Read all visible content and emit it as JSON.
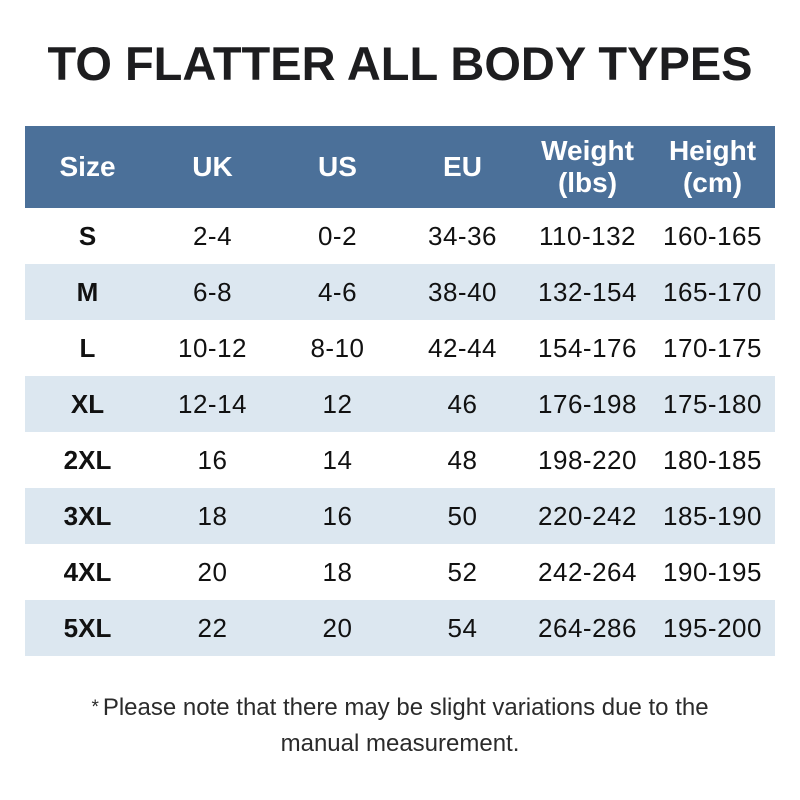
{
  "page": {
    "title": "TO FLATTER ALL BODY TYPES"
  },
  "table": {
    "columns": [
      {
        "key": "size",
        "label": "Size"
      },
      {
        "key": "uk",
        "label": "UK"
      },
      {
        "key": "us",
        "label": "US"
      },
      {
        "key": "eu",
        "label": "EU"
      },
      {
        "key": "weight",
        "label": "Weight (lbs)",
        "line1": "Weight",
        "line2": "(lbs)"
      },
      {
        "key": "height",
        "label": "Height (cm)",
        "line1": "Height",
        "line2": "(cm)"
      }
    ],
    "rows": [
      [
        "S",
        "2-4",
        "0-2",
        "34-36",
        "110-132",
        "160-165"
      ],
      [
        "M",
        "6-8",
        "4-6",
        "38-40",
        "132-154",
        "165-170"
      ],
      [
        "L",
        "10-12",
        "8-10",
        "42-44",
        "154-176",
        "170-175"
      ],
      [
        "XL",
        "12-14",
        "12",
        "46",
        "176-198",
        "175-180"
      ],
      [
        "2XL",
        "16",
        "14",
        "48",
        "198-220",
        "180-185"
      ],
      [
        "3XL",
        "18",
        "16",
        "50",
        "220-242",
        "185-190"
      ],
      [
        "4XL",
        "20",
        "18",
        "52",
        "242-264",
        "190-195"
      ],
      [
        "5XL",
        "22",
        "20",
        "54",
        "264-286",
        "195-200"
      ]
    ]
  },
  "footnote": {
    "marker": "*",
    "text": "Please note that there may be slight variations due to the manual measurement."
  },
  "colors": {
    "header_bg": "#4b7099",
    "stripe_bg": "#dce7f0",
    "title_color": "#1d1d1f",
    "body_text": "#111111",
    "note_text": "#2b2b2b"
  }
}
